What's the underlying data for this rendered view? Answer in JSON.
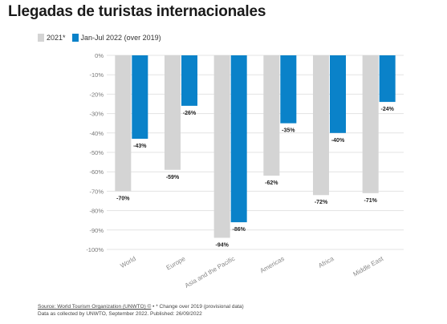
{
  "title": "Llegadas de turistas internacionales",
  "legend": [
    {
      "label": "2021*",
      "color": "#d4d4d4"
    },
    {
      "label": "Jan-Jul 2022 (over 2019)",
      "color": "#0a82c9"
    }
  ],
  "chart_data": {
    "type": "bar",
    "categories": [
      "World",
      "Europe",
      "Asia and the Pacific",
      "Americas",
      "Africa",
      "Middle East"
    ],
    "series": [
      {
        "name": "2021*",
        "color": "#d4d4d4",
        "values": [
          -70,
          -59,
          -94,
          -62,
          -72,
          -71
        ],
        "labels": [
          "-70%",
          "-59%",
          "-94%",
          "-62%",
          "-72%",
          "-71%"
        ]
      },
      {
        "name": "Jan-Jul 2022 (over 2019)",
        "color": "#0a82c9",
        "values": [
          -43,
          -26,
          -86,
          -35,
          -40,
          -24
        ],
        "labels": [
          "-43%",
          "-26%",
          "-86%",
          "-35%",
          "-40%",
          "-24%"
        ]
      }
    ],
    "yticks": [
      0,
      -10,
      -20,
      -30,
      -40,
      -50,
      -60,
      -70,
      -80,
      -90,
      -100
    ],
    "ytick_labels": [
      "0%",
      "-10%",
      "-20%",
      "-30%",
      "-40%",
      "-50%",
      "-60%",
      "-70%",
      "-80%",
      "-90%",
      "-100%"
    ],
    "ylim": [
      -100,
      0
    ],
    "grid": true
  },
  "footer": {
    "source": "Source: World Tourism Organization (UNWTO) ©",
    "note": " • * Change over 2019 (provisional data)",
    "line2": "Data as collected by UNWTO, September 2022. Published: 26/09/2022"
  }
}
